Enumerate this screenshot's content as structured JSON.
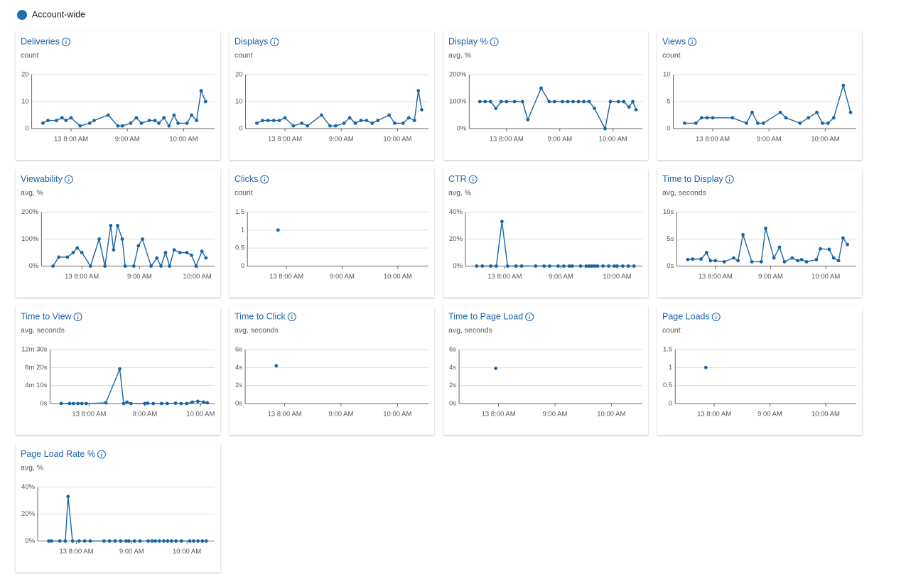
{
  "legend": {
    "label": "Account-wide",
    "color": "#1f6fb0"
  },
  "chart_data": [
    {
      "type": "line",
      "title": "Deliveries",
      "subtitle": "count",
      "color": "#1a64a3",
      "grid": true,
      "x": [
        7.5,
        7.59,
        7.74,
        7.84,
        7.91,
        8,
        8.16,
        8.33,
        8.41,
        8.66,
        8.83,
        8.91,
        9.06,
        9.16,
        9.25,
        9.39,
        9.49,
        9.56,
        9.65,
        9.74,
        9.83,
        9.9,
        10.06,
        10.14,
        10.23,
        10.31,
        10.39
      ],
      "values": [
        2,
        3,
        3,
        4,
        3,
        4,
        1,
        2,
        3,
        5,
        1,
        1,
        2,
        4,
        2,
        3,
        3,
        2,
        4,
        1,
        5,
        2,
        2,
        5,
        3,
        14,
        10
      ],
      "xlim": [
        7.3,
        10.55
      ],
      "xticks": [
        {
          "value": 8,
          "label": "13 8:00 AM"
        },
        {
          "value": 9,
          "label": "9:00 AM"
        },
        {
          "value": 10,
          "label": "10:00 AM"
        }
      ],
      "ylim": [
        0,
        20
      ],
      "yticks": [
        0,
        10,
        20
      ]
    },
    {
      "type": "line",
      "title": "Displays",
      "subtitle": "count",
      "color": "#1a64a3",
      "grid": true,
      "x": [
        7.5,
        7.6,
        7.7,
        7.8,
        7.9,
        8.0,
        8.15,
        8.3,
        8.4,
        8.65,
        8.8,
        8.9,
        9.05,
        9.15,
        9.25,
        9.35,
        9.45,
        9.55,
        9.65,
        9.85,
        9.95,
        10.1,
        10.2,
        10.3,
        10.37,
        10.43
      ],
      "values": [
        2,
        3,
        3,
        3,
        3,
        4,
        1,
        2,
        1,
        5,
        1,
        1,
        2,
        4,
        2,
        3,
        3,
        2,
        3,
        5,
        2,
        2,
        4,
        3,
        14,
        7
      ],
      "xlim": [
        7.3,
        10.55
      ],
      "xticks": [
        {
          "value": 8,
          "label": "13 8:00 AM"
        },
        {
          "value": 9,
          "label": "9:00 AM"
        },
        {
          "value": 10,
          "label": "10:00 AM"
        }
      ],
      "ylim": [
        0,
        20
      ],
      "yticks": [
        0,
        10,
        20
      ]
    },
    {
      "type": "line",
      "title": "Display %",
      "subtitle": "avg, %",
      "color": "#1a64a3",
      "grid": true,
      "x": [
        7.5,
        7.6,
        7.7,
        7.8,
        7.9,
        8.0,
        8.15,
        8.3,
        8.4,
        8.65,
        8.8,
        8.9,
        9.05,
        9.15,
        9.25,
        9.35,
        9.45,
        9.55,
        9.65,
        9.85,
        9.95,
        10.1,
        10.2,
        10.3,
        10.37,
        10.43
      ],
      "values": [
        100,
        100,
        100,
        75,
        100,
        100,
        100,
        100,
        33,
        150,
        100,
        100,
        100,
        100,
        100,
        100,
        100,
        100,
        75,
        0,
        100,
        100,
        100,
        80,
        100,
        70
      ],
      "xlim": [
        7.3,
        10.55
      ],
      "xticks": [
        {
          "value": 8,
          "label": "13 8:00 AM"
        },
        {
          "value": 9,
          "label": "9:00 AM"
        },
        {
          "value": 10,
          "label": "10:00 AM"
        }
      ],
      "ylim": [
        0,
        200
      ],
      "yticks": [
        {
          "value": 0,
          "label": "0%"
        },
        {
          "value": 100,
          "label": "100%"
        },
        {
          "value": 200,
          "label": "200%"
        }
      ]
    },
    {
      "type": "line",
      "title": "Views",
      "subtitle": "count",
      "color": "#1a64a3",
      "grid": true,
      "x": [
        7.5,
        7.7,
        7.8,
        7.9,
        8.0,
        8.35,
        8.6,
        8.7,
        8.8,
        8.9,
        9.2,
        9.3,
        9.55,
        9.7,
        9.85,
        9.95,
        10.05,
        10.15,
        10.32,
        10.45
      ],
      "values": [
        1,
        1,
        2,
        2,
        2,
        2,
        1,
        3,
        1,
        1,
        3,
        2,
        1,
        2,
        3,
        1,
        1,
        2,
        8,
        3
      ],
      "xlim": [
        7.3,
        10.55
      ],
      "xticks": [
        {
          "value": 8,
          "label": "13 8:00 AM"
        },
        {
          "value": 9,
          "label": "9:00 AM"
        },
        {
          "value": 10,
          "label": "10:00 AM"
        }
      ],
      "ylim": [
        0,
        10
      ],
      "yticks": [
        0,
        5,
        10
      ]
    },
    {
      "type": "line",
      "title": "Viewability",
      "subtitle": "avg, %",
      "color": "#1a64a3",
      "grid": true,
      "x": [
        7.5,
        7.6,
        7.75,
        7.85,
        7.92,
        8.0,
        8.15,
        8.3,
        8.4,
        8.5,
        8.55,
        8.62,
        8.7,
        8.75,
        8.9,
        8.98,
        9.05,
        9.2,
        9.3,
        9.37,
        9.45,
        9.52,
        9.6,
        9.7,
        9.82,
        9.9,
        9.98,
        10.08,
        10.15
      ],
      "values": [
        0,
        33,
        33,
        50,
        67,
        50,
        0,
        100,
        0,
        150,
        60,
        150,
        100,
        0,
        0,
        75,
        100,
        0,
        30,
        0,
        50,
        0,
        60,
        50,
        50,
        40,
        0,
        55,
        30
      ],
      "xlim": [
        7.3,
        10.3
      ],
      "xticks": [
        {
          "value": 8,
          "label": "13 8:00 AM"
        },
        {
          "value": 9,
          "label": "9:00 AM"
        },
        {
          "value": 10,
          "label": "10:00 AM"
        }
      ],
      "ylim": [
        0,
        200
      ],
      "yticks": [
        {
          "value": 0,
          "label": "0%"
        },
        {
          "value": 100,
          "label": "100%"
        },
        {
          "value": 200,
          "label": "200%"
        }
      ]
    },
    {
      "type": "line",
      "title": "Clicks",
      "subtitle": "count",
      "color": "#1a64a3",
      "grid": true,
      "x": [
        7.85
      ],
      "values": [
        1
      ],
      "xlim": [
        7.3,
        10.55
      ],
      "xticks": [
        {
          "value": 8,
          "label": "13 8:00 AM"
        },
        {
          "value": 9,
          "label": "9:00 AM"
        },
        {
          "value": 10,
          "label": "10:00 AM"
        }
      ],
      "ylim": [
        0,
        1.5
      ],
      "yticks": [
        0,
        0.5,
        1,
        1.5
      ]
    },
    {
      "type": "line",
      "title": "CTR",
      "subtitle": "avg, %",
      "color": "#1a64a3",
      "grid": true,
      "x": [
        7.5,
        7.6,
        7.75,
        7.85,
        7.95,
        8.05,
        8.2,
        8.3,
        8.55,
        8.7,
        8.8,
        8.95,
        9.05,
        9.15,
        9.2,
        9.35,
        9.45,
        9.5,
        9.55,
        9.6,
        9.65,
        9.75,
        9.85,
        9.95,
        10.0,
        10.1,
        10.2,
        10.3
      ],
      "values": [
        0,
        0,
        0,
        0,
        33,
        0,
        0,
        0,
        0,
        0,
        0,
        0,
        0,
        0,
        0,
        0,
        0,
        0,
        0,
        0,
        0,
        0,
        0,
        0,
        0,
        0,
        0,
        0
      ],
      "xlim": [
        7.3,
        10.45
      ],
      "xticks": [
        {
          "value": 8,
          "label": "13 8:00 AM"
        },
        {
          "value": 9,
          "label": "9:00 AM"
        },
        {
          "value": 10,
          "label": "10:00 AM"
        }
      ],
      "ylim": [
        0,
        40
      ],
      "yticks": [
        {
          "value": 0,
          "label": "0%"
        },
        {
          "value": 20,
          "label": "20%"
        },
        {
          "value": 40,
          "label": "40%"
        }
      ]
    },
    {
      "type": "line",
      "title": "Time to Display",
      "subtitle": "avg, seconds",
      "color": "#1a64a3",
      "grid": true,
      "x": [
        7.5,
        7.59,
        7.74,
        7.84,
        7.91,
        8,
        8.16,
        8.33,
        8.41,
        8.5,
        8.66,
        8.83,
        8.91,
        9.06,
        9.16,
        9.25,
        9.39,
        9.49,
        9.56,
        9.65,
        9.83,
        9.9,
        10.06,
        10.14,
        10.23,
        10.31,
        10.39
      ],
      "values": [
        1.2,
        1.3,
        1.3,
        2.5,
        1,
        1,
        0.8,
        1.5,
        1,
        5.8,
        0.8,
        0.8,
        7,
        1.5,
        3.5,
        0.8,
        1.5,
        1,
        1.2,
        0.8,
        1.2,
        3.2,
        3.1,
        1.5,
        1,
        5.2,
        4
      ],
      "xlim": [
        7.3,
        10.55
      ],
      "xticks": [
        {
          "value": 8,
          "label": "13 8:00 AM"
        },
        {
          "value": 9,
          "label": "9:00 AM"
        },
        {
          "value": 10,
          "label": "10:00 AM"
        }
      ],
      "ylim": [
        0,
        10
      ],
      "yticks": [
        {
          "value": 0,
          "label": "0s"
        },
        {
          "value": 5,
          "label": "5s"
        },
        {
          "value": 10,
          "label": "10s"
        }
      ]
    },
    {
      "type": "line",
      "title": "Time to View",
      "subtitle": "avg, seconds",
      "color": "#1a64a3",
      "grid": true,
      "x": [
        7.5,
        7.65,
        7.72,
        7.8,
        7.87,
        7.95,
        8.3,
        8.55,
        8.62,
        8.68,
        8.75,
        9.0,
        9.05,
        9.15,
        9.3,
        9.4,
        9.55,
        9.65,
        9.75,
        9.85,
        9.95,
        10.05,
        10.12
      ],
      "values": [
        0,
        0,
        0,
        0,
        0,
        0,
        10,
        480,
        0,
        20,
        0,
        0,
        5,
        0,
        0,
        0,
        5,
        0,
        0,
        20,
        30,
        20,
        10
      ],
      "xlim": [
        7.3,
        10.25
      ],
      "xticks": [
        {
          "value": 8,
          "label": "13 8:00 AM"
        },
        {
          "value": 9,
          "label": "9:00 AM"
        },
        {
          "value": 10,
          "label": "10:00 AM"
        }
      ],
      "ylim": [
        0,
        750
      ],
      "yticks": [
        {
          "value": 0,
          "label": "0s"
        },
        {
          "value": 250,
          "label": "4m 10s"
        },
        {
          "value": 500,
          "label": "8m 20s"
        },
        {
          "value": 750,
          "label": "12m 30s"
        }
      ]
    },
    {
      "type": "line",
      "title": "Time to Click",
      "subtitle": "avg, seconds",
      "color": "#1a64a3",
      "grid": true,
      "x": [
        7.85
      ],
      "values": [
        4.2
      ],
      "xlim": [
        7.3,
        10.55
      ],
      "xticks": [
        {
          "value": 8,
          "label": "13 8:00 AM"
        },
        {
          "value": 9,
          "label": "9:00 AM"
        },
        {
          "value": 10,
          "label": "10:00 AM"
        }
      ],
      "ylim": [
        0,
        6
      ],
      "yticks": [
        {
          "value": 0,
          "label": "0s"
        },
        {
          "value": 2,
          "label": "2s"
        },
        {
          "value": 4,
          "label": "4s"
        },
        {
          "value": 6,
          "label": "6s"
        }
      ]
    },
    {
      "type": "line",
      "title": "Time to Page Load",
      "subtitle": "avg, seconds",
      "color": "#1a64a3",
      "grid": true,
      "x": [
        7.95
      ],
      "values": [
        3.9
      ],
      "xlim": [
        7.3,
        10.55
      ],
      "xticks": [
        {
          "value": 8,
          "label": "13 8:00 AM"
        },
        {
          "value": 9,
          "label": "9:00 AM"
        },
        {
          "value": 10,
          "label": "10:00 AM"
        }
      ],
      "ylim": [
        0,
        6
      ],
      "yticks": [
        {
          "value": 0,
          "label": "0s"
        },
        {
          "value": 2,
          "label": "2s"
        },
        {
          "value": 4,
          "label": "4s"
        },
        {
          "value": 6,
          "label": "6s"
        }
      ]
    },
    {
      "type": "line",
      "title": "Page Loads",
      "subtitle": "count",
      "color": "#1a64a3",
      "grid": true,
      "x": [
        7.85
      ],
      "values": [
        1
      ],
      "xlim": [
        7.3,
        10.55
      ],
      "xticks": [
        {
          "value": 8,
          "label": "13 8:00 AM"
        },
        {
          "value": 9,
          "label": "9:00 AM"
        },
        {
          "value": 10,
          "label": "10:00 AM"
        }
      ],
      "ylim": [
        0,
        1.5
      ],
      "yticks": [
        0,
        0.5,
        1,
        1.5
      ]
    },
    {
      "type": "line",
      "title": "Page Load Rate %",
      "subtitle": "avg, %",
      "color": "#1a64a3",
      "grid": true,
      "x": [
        7.5,
        7.55,
        7.7,
        7.8,
        7.85,
        7.93,
        8.05,
        8.15,
        8.25,
        8.5,
        8.6,
        8.7,
        8.8,
        8.9,
        8.95,
        9.05,
        9.15,
        9.3,
        9.37,
        9.43,
        9.5,
        9.58,
        9.65,
        9.72,
        9.8,
        9.9,
        10.05,
        10.12,
        10.2,
        10.28,
        10.35
      ],
      "values": [
        0,
        0,
        0,
        0,
        33,
        0,
        0,
        0,
        0,
        0,
        0,
        0,
        0,
        0,
        0,
        0,
        0,
        0,
        0,
        0,
        0,
        0,
        0,
        0,
        0,
        0,
        0,
        0,
        0,
        0,
        0
      ],
      "xlim": [
        7.3,
        10.5
      ],
      "xticks": [
        {
          "value": 8,
          "label": "13 8:00 AM"
        },
        {
          "value": 9,
          "label": "9:00 AM"
        },
        {
          "value": 10,
          "label": "10:00 AM"
        }
      ],
      "ylim": [
        0,
        40
      ],
      "yticks": [
        {
          "value": 0,
          "label": "0%"
        },
        {
          "value": 20,
          "label": "20%"
        },
        {
          "value": 40,
          "label": "40%"
        }
      ]
    }
  ]
}
